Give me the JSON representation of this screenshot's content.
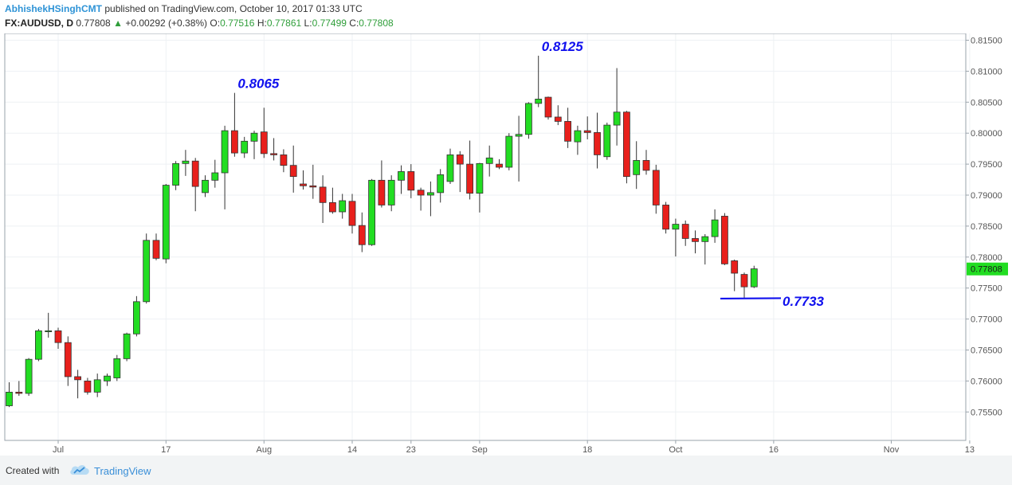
{
  "header": {
    "author": "AbhishekHSinghCMT",
    "published_text": "published on TradingView.com, October 10, 2017 01:33 UTC",
    "symbol": "FX:AUDUSD, D",
    "last": "0.77808",
    "change": "+0.00292 (+0.38%)",
    "open_label": "O:",
    "open": "0.77516",
    "high_label": "H:",
    "high": "0.77861",
    "low_label": "L:",
    "low": "0.77499",
    "close_label": "C:",
    "close": "0.77808",
    "up_arrow": "▲"
  },
  "footer": {
    "created_with": "Created with",
    "brand": "TradingView",
    "logo_icon": "tradingview-cloud-icon"
  },
  "chart_data": {
    "type": "candlestick",
    "title": "",
    "xlabel": "",
    "ylabel": "",
    "ylim": [
      0.751,
      0.816
    ],
    "yticks": [
      "0.81500",
      "0.81000",
      "0.80500",
      "0.80000",
      "0.79500",
      "0.79000",
      "0.78500",
      "0.78000",
      "0.77500",
      "0.77000",
      "0.76500",
      "0.76000",
      "0.75500"
    ],
    "xticks": [
      {
        "label": "Jul",
        "index": 5
      },
      {
        "label": "17",
        "index": 16
      },
      {
        "label": "Aug",
        "index": 26
      },
      {
        "label": "14",
        "index": 35
      },
      {
        "label": "23",
        "index": 41
      },
      {
        "label": "Sep",
        "index": 48
      },
      {
        "label": "18",
        "index": 59
      },
      {
        "label": "Oct",
        "index": 68
      },
      {
        "label": "16",
        "index": 78
      },
      {
        "label": "Nov",
        "index": 90
      },
      {
        "label": "13",
        "index": 98
      }
    ],
    "last_price_label": "0.77808",
    "colors": {
      "up": "#22dd22",
      "down": "#e8201c",
      "annotation": "#1010ee",
      "grid": "#eef1f4"
    },
    "grid": true,
    "candles": [
      {
        "o": 0.756,
        "h": 0.7598,
        "l": 0.7558,
        "c": 0.7582
      },
      {
        "o": 0.7582,
        "h": 0.76,
        "l": 0.7576,
        "c": 0.758
      },
      {
        "o": 0.758,
        "h": 0.7637,
        "l": 0.7576,
        "c": 0.7635
      },
      {
        "o": 0.7635,
        "h": 0.7684,
        "l": 0.7632,
        "c": 0.7681
      },
      {
        "o": 0.7681,
        "h": 0.771,
        "l": 0.767,
        "c": 0.7681
      },
      {
        "o": 0.7681,
        "h": 0.7686,
        "l": 0.7652,
        "c": 0.7662
      },
      {
        "o": 0.7662,
        "h": 0.7672,
        "l": 0.7592,
        "c": 0.7607
      },
      {
        "o": 0.7607,
        "h": 0.7618,
        "l": 0.7572,
        "c": 0.7602
      },
      {
        "o": 0.76,
        "h": 0.7605,
        "l": 0.7578,
        "c": 0.7582
      },
      {
        "o": 0.7582,
        "h": 0.7612,
        "l": 0.7574,
        "c": 0.7602
      },
      {
        "o": 0.76,
        "h": 0.7612,
        "l": 0.7592,
        "c": 0.7608
      },
      {
        "o": 0.7605,
        "h": 0.7642,
        "l": 0.76,
        "c": 0.7636
      },
      {
        "o": 0.7636,
        "h": 0.7678,
        "l": 0.7632,
        "c": 0.7676
      },
      {
        "o": 0.7676,
        "h": 0.7737,
        "l": 0.7672,
        "c": 0.7728
      },
      {
        "o": 0.7728,
        "h": 0.7838,
        "l": 0.7725,
        "c": 0.7827
      },
      {
        "o": 0.7827,
        "h": 0.7838,
        "l": 0.7795,
        "c": 0.7798
      },
      {
        "o": 0.7797,
        "h": 0.7918,
        "l": 0.779,
        "c": 0.7916
      },
      {
        "o": 0.7916,
        "h": 0.7955,
        "l": 0.7908,
        "c": 0.7951
      },
      {
        "o": 0.7951,
        "h": 0.7973,
        "l": 0.7931,
        "c": 0.7955
      },
      {
        "o": 0.7955,
        "h": 0.796,
        "l": 0.7874,
        "c": 0.7914
      },
      {
        "o": 0.7904,
        "h": 0.7932,
        "l": 0.7897,
        "c": 0.7924
      },
      {
        "o": 0.7924,
        "h": 0.7957,
        "l": 0.7912,
        "c": 0.7936
      },
      {
        "o": 0.7936,
        "h": 0.8012,
        "l": 0.7877,
        "c": 0.8004
      },
      {
        "o": 0.8004,
        "h": 0.8065,
        "l": 0.7962,
        "c": 0.7968
      },
      {
        "o": 0.7968,
        "h": 0.7994,
        "l": 0.796,
        "c": 0.7987
      },
      {
        "o": 0.7987,
        "h": 0.8004,
        "l": 0.7958,
        "c": 0.8
      },
      {
        "o": 0.8002,
        "h": 0.8041,
        "l": 0.796,
        "c": 0.7967
      },
      {
        "o": 0.7967,
        "h": 0.7992,
        "l": 0.7956,
        "c": 0.7965
      },
      {
        "o": 0.7965,
        "h": 0.7974,
        "l": 0.7937,
        "c": 0.7948
      },
      {
        "o": 0.7948,
        "h": 0.798,
        "l": 0.7904,
        "c": 0.793
      },
      {
        "o": 0.7918,
        "h": 0.794,
        "l": 0.7909,
        "c": 0.7915
      },
      {
        "o": 0.7915,
        "h": 0.7949,
        "l": 0.7894,
        "c": 0.7913
      },
      {
        "o": 0.7913,
        "h": 0.7932,
        "l": 0.7855,
        "c": 0.7888
      },
      {
        "o": 0.7888,
        "h": 0.7912,
        "l": 0.787,
        "c": 0.7873
      },
      {
        "o": 0.7873,
        "h": 0.7902,
        "l": 0.7862,
        "c": 0.7891
      },
      {
        "o": 0.789,
        "h": 0.7902,
        "l": 0.7838,
        "c": 0.7851
      },
      {
        "o": 0.7851,
        "h": 0.7872,
        "l": 0.7808,
        "c": 0.782
      },
      {
        "o": 0.782,
        "h": 0.7926,
        "l": 0.7818,
        "c": 0.7924
      },
      {
        "o": 0.7924,
        "h": 0.7956,
        "l": 0.788,
        "c": 0.7884
      },
      {
        "o": 0.7884,
        "h": 0.7932,
        "l": 0.7874,
        "c": 0.7924
      },
      {
        "o": 0.7924,
        "h": 0.7948,
        "l": 0.7902,
        "c": 0.7938
      },
      {
        "o": 0.7938,
        "h": 0.795,
        "l": 0.7895,
        "c": 0.7908
      },
      {
        "o": 0.7908,
        "h": 0.7912,
        "l": 0.7875,
        "c": 0.79
      },
      {
        "o": 0.79,
        "h": 0.7922,
        "l": 0.7866,
        "c": 0.7904
      },
      {
        "o": 0.7904,
        "h": 0.7942,
        "l": 0.7888,
        "c": 0.7933
      },
      {
        "o": 0.7922,
        "h": 0.7975,
        "l": 0.7918,
        "c": 0.7965
      },
      {
        "o": 0.7965,
        "h": 0.7971,
        "l": 0.7905,
        "c": 0.795
      },
      {
        "o": 0.795,
        "h": 0.7988,
        "l": 0.7893,
        "c": 0.7903
      },
      {
        "o": 0.7903,
        "h": 0.7952,
        "l": 0.7872,
        "c": 0.7951
      },
      {
        "o": 0.7951,
        "h": 0.798,
        "l": 0.793,
        "c": 0.796
      },
      {
        "o": 0.795,
        "h": 0.7958,
        "l": 0.7942,
        "c": 0.7945
      },
      {
        "o": 0.7945,
        "h": 0.8,
        "l": 0.794,
        "c": 0.7995
      },
      {
        "o": 0.7995,
        "h": 0.8028,
        "l": 0.7922,
        "c": 0.7998
      },
      {
        "o": 0.7998,
        "h": 0.805,
        "l": 0.7991,
        "c": 0.8048
      },
      {
        "o": 0.8048,
        "h": 0.8125,
        "l": 0.8042,
        "c": 0.8055
      },
      {
        "o": 0.8058,
        "h": 0.8059,
        "l": 0.8022,
        "c": 0.8026
      },
      {
        "o": 0.8026,
        "h": 0.8045,
        "l": 0.8013,
        "c": 0.8019
      },
      {
        "o": 0.8019,
        "h": 0.8041,
        "l": 0.7976,
        "c": 0.7987
      },
      {
        "o": 0.7986,
        "h": 0.8012,
        "l": 0.7965,
        "c": 0.8004
      },
      {
        "o": 0.8004,
        "h": 0.8027,
        "l": 0.799,
        "c": 0.8001
      },
      {
        "o": 0.8001,
        "h": 0.8033,
        "l": 0.7943,
        "c": 0.7965
      },
      {
        "o": 0.7962,
        "h": 0.8017,
        "l": 0.7957,
        "c": 0.8013
      },
      {
        "o": 0.8013,
        "h": 0.8105,
        "l": 0.798,
        "c": 0.8034
      },
      {
        "o": 0.8034,
        "h": 0.8036,
        "l": 0.7919,
        "c": 0.793
      },
      {
        "o": 0.7933,
        "h": 0.7987,
        "l": 0.791,
        "c": 0.7956
      },
      {
        "o": 0.7956,
        "h": 0.7973,
        "l": 0.7933,
        "c": 0.794
      },
      {
        "o": 0.794,
        "h": 0.7949,
        "l": 0.787,
        "c": 0.7884
      },
      {
        "o": 0.7884,
        "h": 0.7889,
        "l": 0.7838,
        "c": 0.7845
      },
      {
        "o": 0.7845,
        "h": 0.7862,
        "l": 0.7801,
        "c": 0.7853
      },
      {
        "o": 0.7853,
        "h": 0.7859,
        "l": 0.7818,
        "c": 0.783
      },
      {
        "o": 0.783,
        "h": 0.7843,
        "l": 0.7806,
        "c": 0.7825
      },
      {
        "o": 0.7825,
        "h": 0.7837,
        "l": 0.7788,
        "c": 0.7833
      },
      {
        "o": 0.7833,
        "h": 0.7877,
        "l": 0.7823,
        "c": 0.786
      },
      {
        "o": 0.7866,
        "h": 0.7871,
        "l": 0.7787,
        "c": 0.7789
      },
      {
        "o": 0.7794,
        "h": 0.7796,
        "l": 0.7745,
        "c": 0.7774
      },
      {
        "o": 0.7772,
        "h": 0.7775,
        "l": 0.7733,
        "c": 0.7752
      },
      {
        "o": 0.7752,
        "h": 0.7786,
        "l": 0.775,
        "c": 0.7781
      }
    ],
    "annotations": [
      {
        "text": "0.8065",
        "index": 23,
        "value": 0.8065
      },
      {
        "text": "0.8125",
        "index": 54,
        "value": 0.8125
      },
      {
        "text": "0.7733",
        "index": 75,
        "value": 0.7733
      }
    ]
  }
}
